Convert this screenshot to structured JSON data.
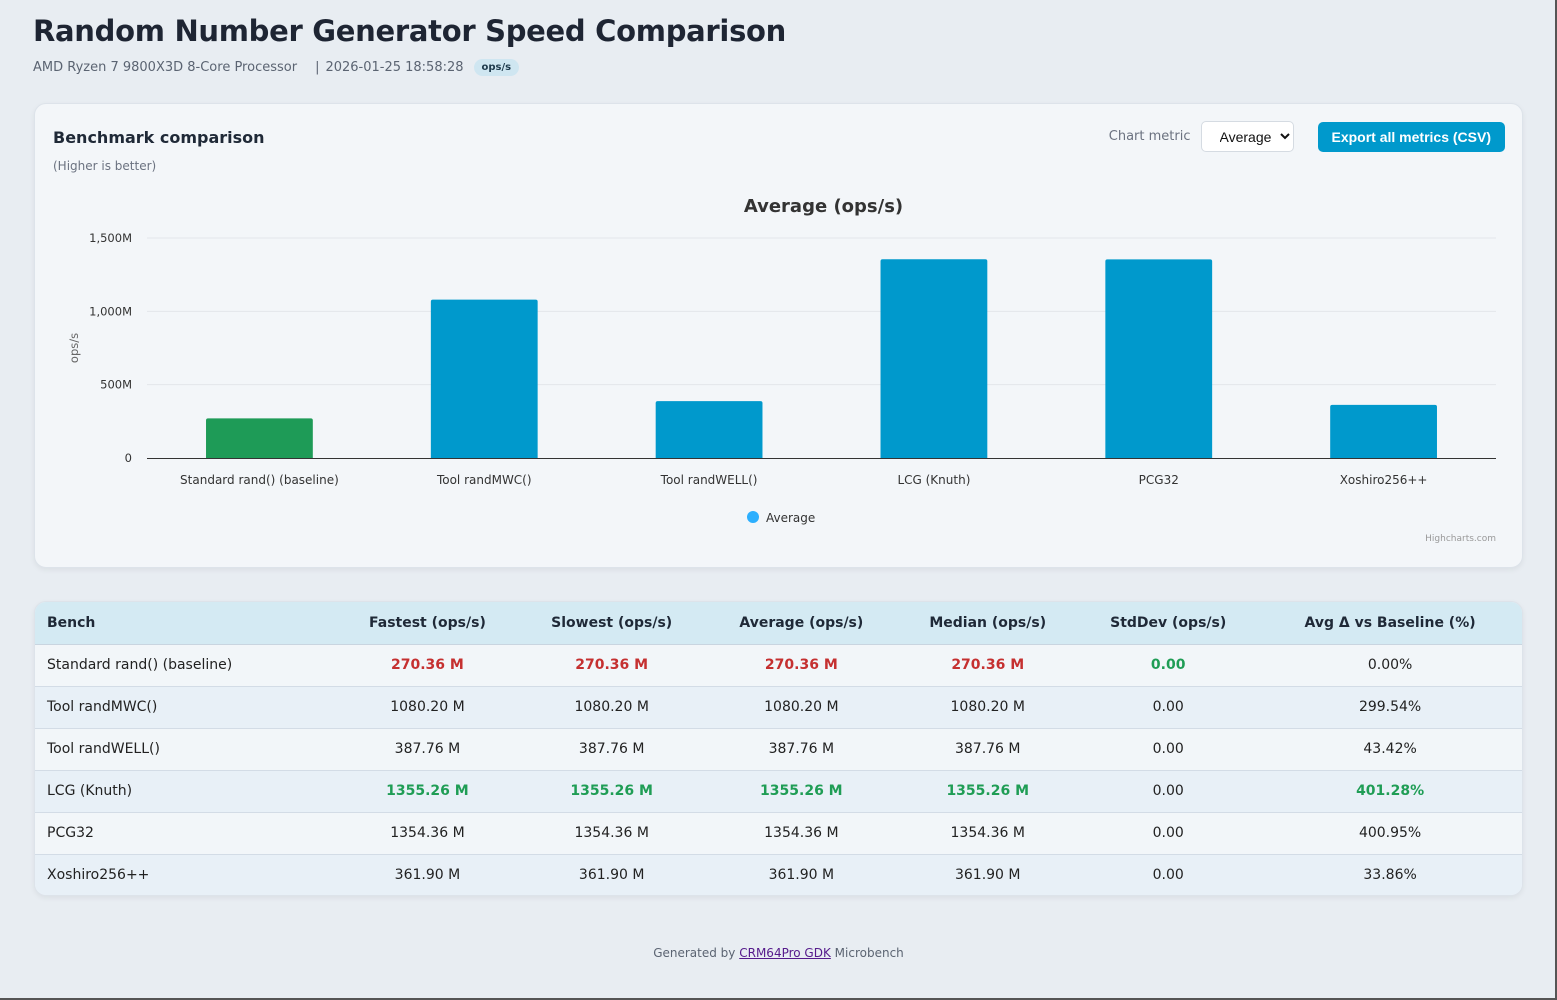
{
  "header": {
    "title": "Random Number Generator Speed Comparison",
    "cpu": "AMD Ryzen 7 9800X3D 8-Core Processor",
    "separator": "|",
    "timestamp": "2026-01-25 18:58:28",
    "unit_badge": "ops/s"
  },
  "chart_card": {
    "title": "Benchmark comparison",
    "subtitle": "(Higher is better)",
    "metric_label": "Chart metric",
    "metric_selected": "Average",
    "export_label": "Export all metrics (CSV)",
    "credits": "Highcharts.com"
  },
  "colors": {
    "baseline_bar": "#1e9b57",
    "bar": "#0099cc",
    "legend_marker": "#2caffe",
    "accent_button": "#0099cc",
    "best_value": "#1f9d55",
    "worst_value": "#c53030"
  },
  "chart_data": {
    "type": "bar",
    "title": "Average (ops/s)",
    "xlabel": "",
    "ylabel": "ops/s",
    "ylim": [
      0,
      1500
    ],
    "yticks": [
      0,
      500,
      1000,
      1500
    ],
    "ytick_labels": [
      "0",
      "500M",
      "1,000M",
      "1,500M"
    ],
    "grid": true,
    "legend": "bottom-center",
    "categories": [
      "Standard rand() (baseline)",
      "Tool randMWC()",
      "Tool randWELL()",
      "LCG (Knuth)",
      "PCG32",
      "Xoshiro256++"
    ],
    "series": [
      {
        "name": "Average",
        "unit": "M ops/s",
        "values": [
          270.36,
          1080.2,
          387.76,
          1355.26,
          1354.36,
          361.9
        ],
        "highlight_index": 0
      }
    ]
  },
  "table": {
    "columns": [
      "Bench",
      "Fastest (ops/s)",
      "Slowest (ops/s)",
      "Average (ops/s)",
      "Median (ops/s)",
      "StdDev (ops/s)",
      "Avg Δ vs Baseline (%)"
    ],
    "rows": [
      {
        "cells": [
          "Standard rand() (baseline)",
          "270.36 M",
          "270.36 M",
          "270.36 M",
          "270.36 M",
          "0.00",
          "0.00%"
        ],
        "styles": [
          "",
          "red",
          "red",
          "red",
          "red",
          "green",
          ""
        ]
      },
      {
        "cells": [
          "Tool randMWC()",
          "1080.20 M",
          "1080.20 M",
          "1080.20 M",
          "1080.20 M",
          "0.00",
          "299.54%"
        ],
        "styles": [
          "",
          "",
          "",
          "",
          "",
          "",
          ""
        ]
      },
      {
        "cells": [
          "Tool randWELL()",
          "387.76 M",
          "387.76 M",
          "387.76 M",
          "387.76 M",
          "0.00",
          "43.42%"
        ],
        "styles": [
          "",
          "",
          "",
          "",
          "",
          "",
          ""
        ]
      },
      {
        "cells": [
          "LCG (Knuth)",
          "1355.26 M",
          "1355.26 M",
          "1355.26 M",
          "1355.26 M",
          "0.00",
          "401.28%"
        ],
        "styles": [
          "",
          "green",
          "green",
          "green",
          "green",
          "",
          "green"
        ]
      },
      {
        "cells": [
          "PCG32",
          "1354.36 M",
          "1354.36 M",
          "1354.36 M",
          "1354.36 M",
          "0.00",
          "400.95%"
        ],
        "styles": [
          "",
          "",
          "",
          "",
          "",
          "",
          ""
        ]
      },
      {
        "cells": [
          "Xoshiro256++",
          "361.90 M",
          "361.90 M",
          "361.90 M",
          "361.90 M",
          "0.00",
          "33.86%"
        ],
        "styles": [
          "",
          "",
          "",
          "",
          "",
          "",
          ""
        ]
      }
    ]
  },
  "footer": {
    "prefix": "Generated by",
    "link_text": "CRM64Pro GDK",
    "suffix": "Microbench"
  }
}
